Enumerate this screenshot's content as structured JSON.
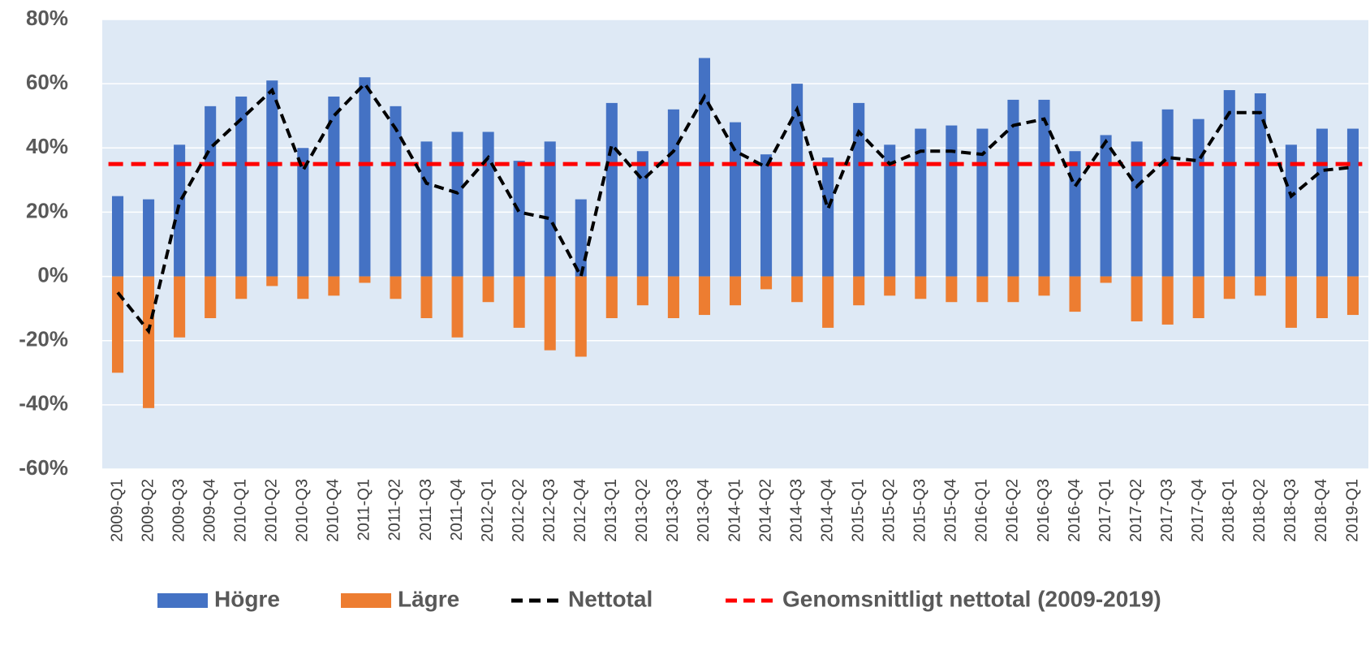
{
  "chart_data": {
    "type": "bar",
    "categories": [
      "2009-Q1",
      "2009-Q2",
      "2009-Q3",
      "2009-Q4",
      "2010-Q1",
      "2010-Q2",
      "2010-Q3",
      "2010-Q4",
      "2011-Q1",
      "2011-Q2",
      "2011-Q3",
      "2011-Q4",
      "2012-Q1",
      "2012-Q2",
      "2012-Q3",
      "2012-Q4",
      "2013-Q1",
      "2013-Q2",
      "2013-Q3",
      "2013-Q4",
      "2014-Q1",
      "2014-Q2",
      "2014-Q3",
      "2014-Q4",
      "2015-Q1",
      "2015-Q2",
      "2015-Q3",
      "2015-Q4",
      "2016-Q1",
      "2016-Q2",
      "2016-Q3",
      "2016-Q4",
      "2017-Q1",
      "2017-Q2",
      "2017-Q3",
      "2017-Q4",
      "2018-Q1",
      "2018-Q2",
      "2018-Q3",
      "2018-Q4",
      "2019-Q1"
    ],
    "series": [
      {
        "name": "Högre",
        "type": "bar",
        "color": "#4472c4",
        "values": [
          25,
          24,
          41,
          53,
          56,
          61,
          40,
          56,
          62,
          53,
          42,
          45,
          45,
          36,
          42,
          24,
          54,
          39,
          52,
          68,
          48,
          38,
          60,
          37,
          54,
          41,
          46,
          47,
          46,
          55,
          55,
          39,
          44,
          42,
          52,
          49,
          58,
          57,
          41,
          46,
          46
        ]
      },
      {
        "name": "Lägre",
        "type": "bar",
        "color": "#ed7d31",
        "values": [
          -30,
          -41,
          -19,
          -13,
          -7,
          -3,
          -7,
          -6,
          -2,
          -7,
          -13,
          -19,
          -8,
          -16,
          -23,
          -25,
          -13,
          -9,
          -13,
          -12,
          -9,
          -4,
          -8,
          -16,
          -9,
          -6,
          -7,
          -8,
          -8,
          -8,
          -6,
          -11,
          -2,
          -14,
          -15,
          -13,
          -7,
          -6,
          -16,
          -13,
          -12
        ]
      },
      {
        "name": "Nettotal",
        "type": "line",
        "color": "#000000",
        "values": [
          -5,
          -17,
          23,
          40,
          49,
          58,
          33,
          50,
          60,
          46,
          29,
          26,
          37,
          20,
          18,
          0,
          41,
          30,
          39,
          56,
          39,
          34,
          52,
          21,
          45,
          35,
          39,
          39,
          38,
          47,
          49,
          28,
          42,
          28,
          37,
          36,
          51,
          51,
          25,
          33,
          34
        ]
      },
      {
        "name": "Genomsnittligt nettotal (2009-2019)",
        "type": "hline",
        "color": "#ff0000",
        "value": 35
      }
    ],
    "ylim": [
      -60,
      80
    ],
    "yticks": [
      {
        "value": -60,
        "label": "-60%"
      },
      {
        "value": -40,
        "label": "-40%"
      },
      {
        "value": -20,
        "label": "-20%"
      },
      {
        "value": 0,
        "label": "0%"
      },
      {
        "value": 20,
        "label": "20%"
      },
      {
        "value": 40,
        "label": "40%"
      },
      {
        "value": 60,
        "label": "60%"
      },
      {
        "value": 80,
        "label": "80%"
      }
    ],
    "grid": true,
    "background": "#dee9f5",
    "legend": "bottom"
  }
}
